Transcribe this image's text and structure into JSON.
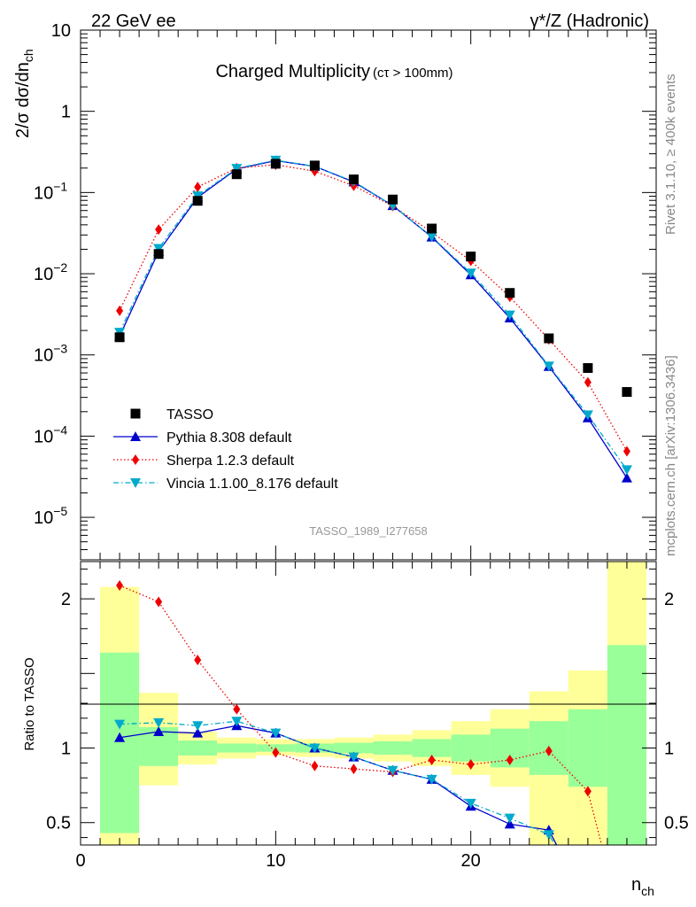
{
  "header": {
    "left_label": "22 GeV ee",
    "right_label": "γ*/Z (Hadronic)"
  },
  "side_labels": {
    "rivet": "Rivet 3.1.10, ≥ 400k events",
    "mcplots": "mcplots.cern.ch [arXiv:1306.3436]"
  },
  "chart_data": [
    {
      "panel": "main",
      "type": "line",
      "title_main": "Charged Multiplicity",
      "title_sub": "(cτ > 100mm)",
      "ylabel": "2/σ dσ/dn",
      "ylabel_sub": "ch",
      "analysis_id": "TASSO_1989_I277658",
      "yscale": "log",
      "xlim": [
        0,
        29.5
      ],
      "ylim": [
        3e-06,
        10
      ],
      "yticks": [
        {
          "v": 10,
          "m": "10",
          "e": ""
        },
        {
          "v": 1,
          "m": "1",
          "e": ""
        },
        {
          "v": 0.1,
          "m": "10",
          "e": "−1"
        },
        {
          "v": 0.01,
          "m": "10",
          "e": "−2"
        },
        {
          "v": 0.001,
          "m": "10",
          "e": "−3"
        },
        {
          "v": 0.0001,
          "m": "10",
          "e": "−4"
        },
        {
          "v": 1e-05,
          "m": "10",
          "e": "−5"
        }
      ],
      "legend_position": "lower-left",
      "series": [
        {
          "name": "TASSO",
          "style": "square",
          "color": "#000000",
          "x": [
            2,
            4,
            6,
            8,
            10,
            12,
            14,
            16,
            18,
            20,
            22,
            24,
            26,
            28
          ],
          "y": [
            0.00165,
            0.0175,
            0.079,
            0.168,
            0.226,
            0.215,
            0.145,
            0.082,
            0.036,
            0.0163,
            0.0058,
            0.0016,
            0.00069,
            0.00035
          ]
        },
        {
          "name": "Pythia 8.308 default",
          "style": "triangle-up",
          "line": "solid",
          "color": "#0000cc",
          "x": [
            2,
            4,
            6,
            8,
            10,
            12,
            14,
            16,
            18,
            20,
            22,
            24,
            26,
            28
          ],
          "y": [
            0.0017,
            0.0188,
            0.087,
            0.195,
            0.247,
            0.21,
            0.135,
            0.069,
            0.0283,
            0.0097,
            0.00285,
            0.00072,
            0.000168,
            3.05e-05
          ]
        },
        {
          "name": "Sherpa 1.2.3 default",
          "style": "diamond",
          "line": "dotted",
          "color": "#ee0000",
          "x": [
            2,
            4,
            6,
            8,
            10,
            12,
            14,
            16,
            18,
            20,
            22,
            24,
            26,
            28
          ],
          "y": [
            0.0035,
            0.035,
            0.117,
            0.2,
            0.22,
            0.183,
            0.121,
            0.068,
            0.0325,
            0.0144,
            0.0052,
            0.00155,
            0.00046,
            6.5e-05
          ]
        },
        {
          "name": "Vincia 1.1.00_8.176 default",
          "style": "triangle-down",
          "line": "dashdot",
          "color": "#00aacc",
          "x": [
            2,
            4,
            6,
            8,
            10,
            12,
            14,
            16,
            18,
            20,
            22,
            24,
            26,
            28
          ],
          "y": [
            0.0019,
            0.0205,
            0.091,
            0.198,
            0.25,
            0.21,
            0.137,
            0.069,
            0.0285,
            0.0102,
            0.0031,
            0.00073,
            0.000183,
            3.85e-05
          ]
        }
      ]
    },
    {
      "panel": "ratio",
      "type": "line",
      "ylabel": "Ratio to TASSO",
      "xlabel": "n",
      "xlabel_sub": "ch",
      "xlim": [
        0,
        29.5
      ],
      "ylim": [
        0.35,
        2.25
      ],
      "xticks": [
        0,
        10,
        20
      ],
      "yticks": [
        0.5,
        1,
        2
      ],
      "bands": [
        {
          "x0": 1,
          "x1": 3,
          "in_lo": 0.43,
          "in_hi": 1.64,
          "out_lo": 0.35,
          "out_hi": 2.08
        },
        {
          "x0": 3,
          "x1": 5,
          "in_lo": 0.88,
          "in_hi": 1.14,
          "out_lo": 0.75,
          "out_hi": 1.37
        },
        {
          "x0": 5,
          "x1": 7,
          "in_lo": 0.95,
          "in_hi": 1.05,
          "out_lo": 0.89,
          "out_hi": 1.11
        },
        {
          "x0": 7,
          "x1": 9,
          "in_lo": 0.97,
          "in_hi": 1.03,
          "out_lo": 0.93,
          "out_hi": 1.07
        },
        {
          "x0": 9,
          "x1": 11,
          "in_lo": 0.975,
          "in_hi": 1.025,
          "out_lo": 0.95,
          "out_hi": 1.06
        },
        {
          "x0": 11,
          "x1": 13,
          "in_lo": 0.97,
          "in_hi": 1.03,
          "out_lo": 0.94,
          "out_hi": 1.06
        },
        {
          "x0": 13,
          "x1": 15,
          "in_lo": 0.965,
          "in_hi": 1.035,
          "out_lo": 0.93,
          "out_hi": 1.07
        },
        {
          "x0": 15,
          "x1": 17,
          "in_lo": 0.955,
          "in_hi": 1.045,
          "out_lo": 0.91,
          "out_hi": 1.09
        },
        {
          "x0": 17,
          "x1": 19,
          "in_lo": 0.94,
          "in_hi": 1.06,
          "out_lo": 0.88,
          "out_hi": 1.12
        },
        {
          "x0": 19,
          "x1": 21,
          "in_lo": 0.91,
          "in_hi": 1.09,
          "out_lo": 0.82,
          "out_hi": 1.18
        },
        {
          "x0": 21,
          "x1": 23,
          "in_lo": 0.87,
          "in_hi": 1.13,
          "out_lo": 0.74,
          "out_hi": 1.26
        },
        {
          "x0": 23,
          "x1": 25,
          "in_lo": 0.82,
          "in_hi": 1.18,
          "out_lo": 0.35,
          "out_hi": 1.38
        },
        {
          "x0": 25,
          "x1": 27,
          "in_lo": 0.74,
          "in_hi": 1.26,
          "out_lo": 0.35,
          "out_hi": 1.52
        },
        {
          "x0": 27,
          "x1": 29,
          "in_lo": 0.35,
          "in_hi": 1.69,
          "out_lo": 0.35,
          "out_hi": 2.25
        }
      ],
      "series": [
        {
          "name": "Pythia 8.308 default",
          "style": "triangle-up",
          "line": "solid",
          "color": "#0000cc",
          "x": [
            2,
            4,
            6,
            8,
            10,
            12,
            14,
            16,
            18,
            20,
            22,
            24,
            25
          ],
          "y": [
            1.07,
            1.11,
            1.1,
            1.15,
            1.1,
            1.0,
            0.94,
            0.85,
            0.79,
            0.61,
            0.49,
            0.45,
            0.2
          ]
        },
        {
          "name": "Sherpa 1.2.3 default",
          "style": "diamond",
          "line": "dotted",
          "color": "#ee0000",
          "x": [
            2,
            4,
            6,
            8,
            10,
            12,
            14,
            16,
            18,
            20,
            22,
            24,
            26,
            27
          ],
          "y": [
            2.09,
            1.98,
            1.59,
            1.26,
            0.97,
            0.88,
            0.86,
            0.84,
            0.92,
            0.89,
            0.92,
            0.98,
            0.71,
            0.2
          ]
        },
        {
          "name": "Vincia 1.1.00_8.176 default",
          "style": "triangle-down",
          "line": "dashdot",
          "color": "#00aacc",
          "x": [
            2,
            4,
            6,
            8,
            10,
            12,
            14,
            16,
            18,
            20,
            22,
            24,
            25
          ],
          "y": [
            1.16,
            1.17,
            1.15,
            1.18,
            1.1,
            1.0,
            0.94,
            0.85,
            0.79,
            0.63,
            0.53,
            0.42,
            0.2
          ]
        }
      ]
    }
  ]
}
